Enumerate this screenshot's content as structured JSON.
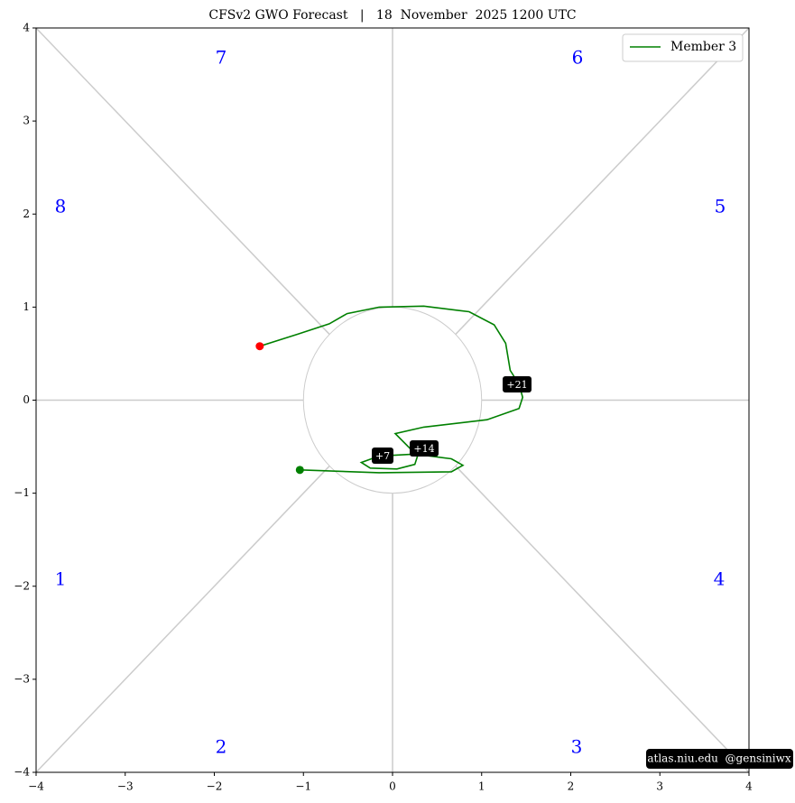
{
  "chart_data": {
    "type": "line",
    "title": "CFSv2 GWO Forecast   |   18  November  2025 1200 UTC",
    "series": [
      {
        "name": "Member 3",
        "color": "green",
        "x": [
          -1.04,
          -0.15,
          0.66,
          0.79,
          0.66,
          0.25,
          -0.15,
          -0.35,
          -0.25,
          0.05,
          0.25,
          0.28,
          0.03,
          0.35,
          1.06,
          1.42,
          1.46,
          1.42,
          1.32,
          1.27,
          1.14,
          0.86,
          0.35,
          -0.15,
          -0.51,
          -0.71,
          -1.06,
          -1.49
        ],
        "y": [
          -0.75,
          -0.78,
          -0.77,
          -0.7,
          -0.63,
          -0.58,
          -0.6,
          -0.67,
          -0.73,
          -0.74,
          -0.69,
          -0.6,
          -0.36,
          -0.29,
          -0.21,
          -0.09,
          0.03,
          0.17,
          0.32,
          0.61,
          0.81,
          0.95,
          1.01,
          1.0,
          0.93,
          0.82,
          0.71,
          0.58
        ]
      }
    ],
    "start_color": "green",
    "end_color": "red",
    "annotations": [
      "+7",
      "+14",
      "+21"
    ],
    "phase_labels": [
      "1",
      "2",
      "3",
      "4",
      "5",
      "6",
      "7",
      "8"
    ],
    "phase_label_color": "blue",
    "watermark": "atlas.niu.edu  @gensiniwx",
    "legend": "upper right",
    "xlim": [
      -4,
      4
    ],
    "ylim": [
      -4,
      4
    ],
    "xticks": [
      {
        "value": -4,
        "label": "−4"
      },
      {
        "value": -3,
        "label": "−3"
      },
      {
        "value": -2,
        "label": "−2"
      },
      {
        "value": -1,
        "label": "−1"
      },
      0,
      1,
      2,
      3,
      4
    ],
    "yticks": [
      {
        "value": -4,
        "label": "−4"
      },
      {
        "value": -3,
        "label": "−3"
      },
      {
        "value": -2,
        "label": "−2"
      },
      {
        "value": -1,
        "label": "−1"
      },
      0,
      1,
      2,
      3,
      4
    ]
  }
}
